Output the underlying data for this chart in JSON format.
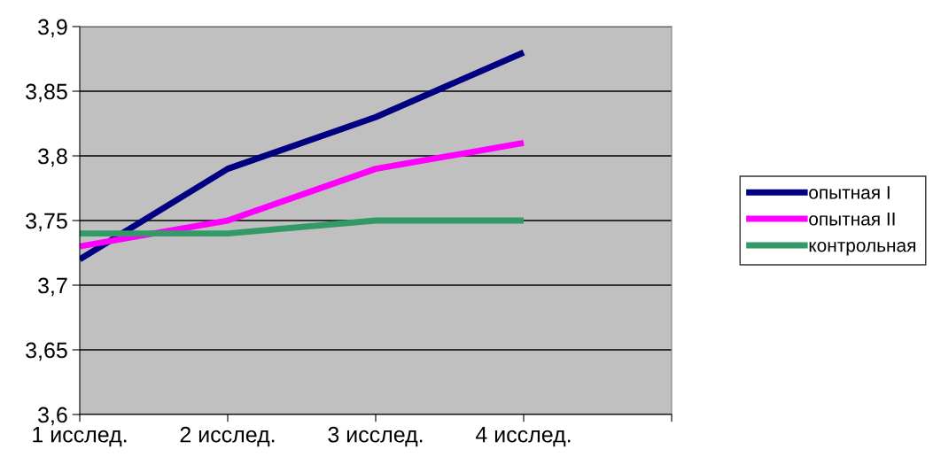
{
  "chart_data": {
    "type": "line",
    "categories": [
      "1 исслед.",
      "2 исслед.",
      "3 исслед.",
      "4 исслед.",
      null
    ],
    "series": [
      {
        "name": "опытная I",
        "color": "#000080",
        "values": [
          3.72,
          3.79,
          3.83,
          3.88,
          null
        ]
      },
      {
        "name": "опытная II",
        "color": "#ff00ff",
        "values": [
          3.73,
          3.75,
          3.79,
          3.81,
          null
        ]
      },
      {
        "name": "контрольная",
        "color": "#339966",
        "values": [
          3.74,
          3.74,
          3.75,
          3.75,
          null
        ]
      }
    ],
    "ylim": [
      3.6,
      3.9
    ],
    "yticks": [
      {
        "value": 3.6,
        "label": "3,6"
      },
      {
        "value": 3.65,
        "label": "3,65"
      },
      {
        "value": 3.7,
        "label": "3,7"
      },
      {
        "value": 3.75,
        "label": "3,75"
      },
      {
        "value": 3.8,
        "label": "3,8"
      },
      {
        "value": 3.85,
        "label": "3,85"
      },
      {
        "value": 3.9,
        "label": "3,9"
      }
    ],
    "grid": "y",
    "legend": "right",
    "marker": "none",
    "line_style": "solid"
  }
}
